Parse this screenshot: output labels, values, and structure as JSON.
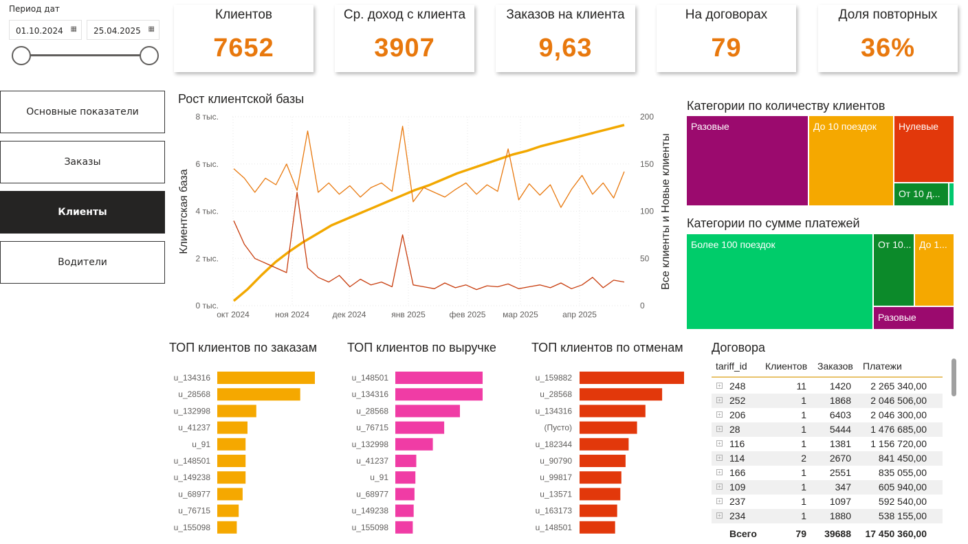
{
  "slicer": {
    "title": "Период дат",
    "start": "01.10.2024",
    "end": "25.04.2025",
    "calendar_icon": "calendar-icon"
  },
  "nav": [
    {
      "label": "Основные показатели",
      "active": false
    },
    {
      "label": "Заказы",
      "active": false
    },
    {
      "label": "Клиенты",
      "active": true
    },
    {
      "label": "Водители",
      "active": false
    }
  ],
  "kpis": [
    {
      "label": "Клиентов",
      "value": "7652"
    },
    {
      "label": "Ср. доход с клиента",
      "value": "3907"
    },
    {
      "label": "Заказов на клиента",
      "value": "9,63"
    },
    {
      "label": "На договорах",
      "value": "79"
    },
    {
      "label": "Доля повторных",
      "value": "36%"
    }
  ],
  "growth": {
    "title": "Рост клиентской базы",
    "ylabel_left": "Клиентская база",
    "ylabel_right": "Все клиенты и Новые клиенты",
    "colors": {
      "base": "#f2a800",
      "all": "#e8780d",
      "new": "#c73b0b"
    }
  },
  "chart_data": [
    {
      "type": "line",
      "id": "growth",
      "x_ticks": [
        "окт 2024",
        "ноя 2024",
        "дек 2024",
        "янв 2025",
        "фев 2025",
        "мар 2025",
        "апр 2025"
      ],
      "y_left_ticks": [
        "0 тыс.",
        "2 тыс.",
        "4 тыс.",
        "6 тыс.",
        "8 тыс."
      ],
      "y_right_ticks": [
        "0",
        "50",
        "100",
        "150",
        "200"
      ],
      "ylim_left": [
        0,
        8000
      ],
      "ylim_right": [
        0,
        200
      ],
      "series": [
        {
          "axis": "left",
          "values": [
            200,
            700,
            1300,
            1850,
            2300,
            2700,
            3050,
            3400,
            3650,
            3900,
            4150,
            4400,
            4650,
            4900,
            5100,
            5350,
            5600,
            5800,
            6000,
            6200,
            6400,
            6550,
            6750,
            6900,
            7050,
            7200,
            7350,
            7500,
            7652
          ]
        },
        {
          "axis": "right",
          "values": [
            145,
            135,
            120,
            135,
            128,
            150,
            122,
            185,
            120,
            130,
            118,
            127,
            115,
            125,
            130,
            121,
            190,
            110,
            125,
            120,
            115,
            123,
            130,
            118,
            128,
            121,
            166,
            112,
            129,
            117,
            128,
            104,
            123,
            138,
            118,
            130,
            114,
            142
          ]
        },
        {
          "axis": "right",
          "values": [
            90,
            65,
            50,
            45,
            40,
            35,
            120,
            40,
            30,
            25,
            32,
            20,
            28,
            22,
            25,
            20,
            75,
            22,
            20,
            18,
            24,
            19,
            22,
            17,
            21,
            20,
            23,
            18,
            20,
            22,
            19,
            24,
            18,
            22,
            30,
            19,
            27,
            25
          ]
        }
      ]
    },
    {
      "type": "treemap",
      "id": "cat-count",
      "title": "Категории по количеству клиентов",
      "items": [
        {
          "label": "Разовые",
          "color": "#9b0a6e"
        },
        {
          "label": "До 10 поездок",
          "color": "#f5a800"
        },
        {
          "label": "Нулевые",
          "color": "#e2380b"
        },
        {
          "label": "От 10 д...",
          "color": "#0c8a2a"
        },
        {
          "label": "",
          "color": "#00c86e"
        }
      ]
    },
    {
      "type": "treemap",
      "id": "cat-sum",
      "title": "Категории по сумме платежей",
      "items": [
        {
          "label": "Более 100 поездок",
          "color": "#00cc6a"
        },
        {
          "label": "От 10...",
          "color": "#0c8a2a"
        },
        {
          "label": "До 1...",
          "color": "#f5a800"
        },
        {
          "label": "Разовые",
          "color": "#9b0a6e"
        }
      ]
    },
    {
      "type": "bar",
      "id": "top-orders",
      "title": "ТОП клиентов по заказам",
      "color": "#f5a800",
      "categories": [
        "u_134316",
        "u_28568",
        "u_132998",
        "u_41237",
        "u_91",
        "u_148501",
        "u_149238",
        "u_68977",
        "u_76715",
        "u_155098"
      ],
      "values": [
        100,
        85,
        40,
        31,
        29,
        29,
        29,
        26,
        22,
        20
      ]
    },
    {
      "type": "bar",
      "id": "top-revenue",
      "title": "ТОП клиентов по выручке",
      "color": "#f03ca5",
      "categories": [
        "u_148501",
        "u_134316",
        "u_28568",
        "u_76715",
        "u_132998",
        "u_41237",
        "u_91",
        "u_68977",
        "u_149238",
        "u_155098"
      ],
      "values": [
        100,
        100,
        74,
        56,
        43,
        24,
        23,
        22,
        21,
        20
      ]
    },
    {
      "type": "bar",
      "id": "top-cancel",
      "title": "ТОП клиентов по отменам",
      "color": "#e2380b",
      "categories": [
        "u_159882",
        "u_28568",
        "u_134316",
        "(Пусто)",
        "u_182344",
        "u_90790",
        "u_99817",
        "u_13571",
        "u_163173",
        "u_148501"
      ],
      "values": [
        100,
        79,
        63,
        55,
        47,
        44,
        40,
        39,
        36,
        34
      ]
    }
  ],
  "contracts": {
    "title": "Договора",
    "headers": [
      "tariff_id",
      "Клиентов",
      "Заказов",
      "Платежи"
    ],
    "rows": [
      [
        "248",
        "11",
        "1420",
        "2 265 340,00"
      ],
      [
        "252",
        "1",
        "1868",
        "2 046 506,00"
      ],
      [
        "206",
        "1",
        "6403",
        "2 046 300,00"
      ],
      [
        "28",
        "1",
        "5444",
        "1 476 685,00"
      ],
      [
        "116",
        "1",
        "1381",
        "1 156 720,00"
      ],
      [
        "114",
        "2",
        "2670",
        "841 450,00"
      ],
      [
        "166",
        "1",
        "2551",
        "835 055,00"
      ],
      [
        "109",
        "1",
        "347",
        "605 940,00"
      ],
      [
        "237",
        "1",
        "1097",
        "592 540,00"
      ],
      [
        "234",
        "1",
        "1880",
        "538 155,00"
      ]
    ],
    "total": [
      "Всего",
      "79",
      "39688",
      "17 450 360,00"
    ]
  }
}
